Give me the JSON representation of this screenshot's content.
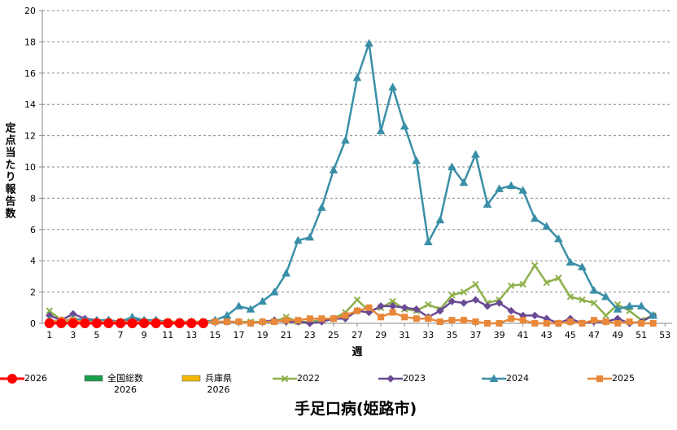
{
  "chart_data": {
    "type": "line",
    "title": "手足口病(姫路市)",
    "x_label": "週",
    "y_label": "定点当たり報告数",
    "x": [
      1,
      2,
      3,
      4,
      5,
      6,
      7,
      8,
      9,
      10,
      11,
      12,
      13,
      14,
      15,
      16,
      17,
      18,
      19,
      20,
      21,
      22,
      23,
      24,
      25,
      26,
      27,
      28,
      29,
      30,
      31,
      32,
      33,
      34,
      35,
      36,
      37,
      38,
      39,
      40,
      41,
      42,
      43,
      44,
      45,
      46,
      47,
      48,
      49,
      50,
      51,
      52,
      53
    ],
    "xlim": [
      0.4,
      53.6
    ],
    "xticks": [
      1,
      3,
      5,
      7,
      9,
      11,
      13,
      15,
      17,
      19,
      21,
      23,
      25,
      27,
      29,
      31,
      33,
      35,
      37,
      39,
      41,
      43,
      45,
      47,
      49,
      51,
      53
    ],
    "ylim": [
      0,
      20
    ],
    "yticks": [
      0,
      2,
      4,
      6,
      8,
      10,
      12,
      14,
      16,
      18,
      20
    ],
    "grid": true,
    "series": [
      {
        "name": "全国総数\n2026",
        "color": "#1aa04a",
        "kind": "bar"
      },
      {
        "name": "兵庫県\n2026",
        "color": "#f5b800",
        "kind": "bar"
      },
      {
        "name": "2022",
        "color": "#8db04a",
        "marker": "x",
        "values": [
          0.8,
          0.2,
          0.1,
          0.1,
          0.1,
          0.1,
          0.1,
          0.1,
          0.1,
          0.1,
          0.1,
          0.1,
          0.1,
          0.1,
          0.1,
          0.1,
          0.1,
          0.1,
          0.1,
          0.1,
          0.4,
          0.1,
          0.1,
          0.2,
          0.3,
          0.7,
          1.5,
          0.8,
          1.0,
          1.4,
          0.9,
          0.8,
          1.2,
          0.9,
          1.8,
          2.0,
          2.5,
          1.3,
          1.5,
          2.4,
          2.5,
          3.7,
          2.6,
          2.9,
          1.7,
          1.5,
          1.3,
          0.5,
          1.2,
          0.8,
          0.2,
          0.5,
          null
        ]
      },
      {
        "name": "2023",
        "color": "#6b4a94",
        "marker": "diamond",
        "values": [
          0.5,
          0.2,
          0.6,
          0.3,
          0.2,
          0.2,
          0.1,
          0.2,
          0.2,
          0.2,
          0.1,
          0.1,
          0.1,
          0.1,
          0.1,
          0.1,
          0.1,
          0.0,
          0.1,
          0.2,
          0.1,
          0.1,
          0.0,
          0.1,
          0.3,
          0.3,
          0.8,
          0.7,
          1.1,
          1.1,
          1.0,
          0.9,
          0.4,
          0.8,
          1.4,
          1.3,
          1.5,
          1.1,
          1.3,
          0.8,
          0.5,
          0.5,
          0.3,
          0.0,
          0.3,
          0.0,
          0.1,
          0.1,
          0.3,
          0.0,
          0.1,
          0.5,
          null
        ]
      },
      {
        "name": "2024",
        "color": "#3a8fa8",
        "marker": "triangle",
        "values": [
          0.2,
          0.1,
          0.3,
          0.2,
          0.2,
          0.2,
          0.1,
          0.4,
          0.2,
          0.2,
          0.1,
          0.1,
          0.1,
          0.1,
          0.2,
          0.5,
          1.1,
          0.9,
          1.4,
          2.0,
          3.2,
          5.3,
          5.5,
          7.4,
          9.8,
          11.7,
          15.7,
          17.9,
          12.3,
          15.1,
          12.6,
          10.4,
          5.2,
          6.6,
          10.0,
          9.0,
          10.8,
          7.6,
          8.6,
          8.8,
          8.5,
          6.7,
          6.2,
          5.4,
          3.9,
          3.6,
          2.1,
          1.7,
          0.9,
          1.1,
          1.1,
          0.5,
          null
        ]
      },
      {
        "name": "2025",
        "color": "#e8883a",
        "marker": "square",
        "values": [
          0.1,
          0.2,
          0.2,
          0.1,
          0.1,
          0.1,
          0.1,
          0.1,
          0.1,
          0.1,
          0.1,
          0.1,
          0.1,
          0.1,
          0.1,
          0.1,
          0.1,
          0.0,
          0.1,
          0.1,
          0.2,
          0.2,
          0.3,
          0.3,
          0.3,
          0.5,
          0.8,
          1.0,
          0.4,
          0.7,
          0.4,
          0.3,
          0.3,
          0.1,
          0.2,
          0.2,
          0.1,
          0.0,
          0.0,
          0.3,
          0.2,
          0.0,
          0.0,
          0.0,
          0.1,
          0.0,
          0.2,
          0.1,
          0.0,
          0.1,
          0.0,
          0.0,
          null
        ]
      },
      {
        "name": "2026",
        "color": "#ff0000",
        "marker": "circle",
        "values": [
          0,
          0,
          0,
          0,
          0,
          0,
          0,
          0,
          0,
          0,
          0,
          0,
          0,
          0,
          null,
          null,
          null,
          null,
          null,
          null,
          null,
          null,
          null,
          null,
          null,
          null,
          null,
          null,
          null,
          null,
          null,
          null,
          null,
          null,
          null,
          null,
          null,
          null,
          null,
          null,
          null,
          null,
          null,
          null,
          null,
          null,
          null,
          null,
          null,
          null,
          null,
          null,
          null
        ]
      }
    ]
  }
}
